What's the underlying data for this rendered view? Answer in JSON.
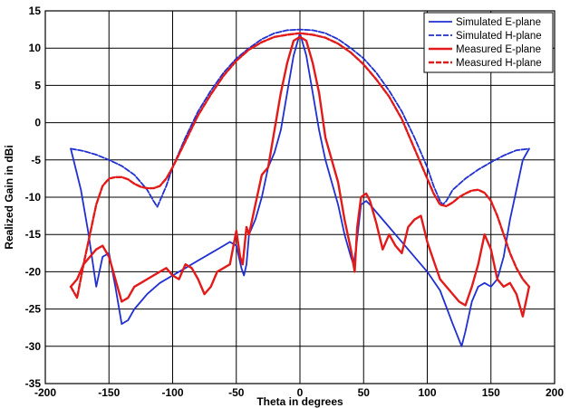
{
  "chart_data": {
    "type": "line",
    "title": "",
    "xlabel": "Theta in degrees",
    "ylabel": "Realized Gain in dBi",
    "xlim": [
      -200,
      200
    ],
    "ylim": [
      -35,
      15
    ],
    "xticks": [
      -200,
      -150,
      -100,
      -50,
      0,
      50,
      100,
      150,
      200
    ],
    "yticks": [
      15,
      10,
      5,
      0,
      -5,
      -10,
      -15,
      -20,
      -25,
      -30,
      -35
    ],
    "grid": true,
    "legend_position": "top-right",
    "series": [
      {
        "name": "Simulated E-plane",
        "color": "#1f2fd0",
        "style": "solid",
        "x": [
          -180,
          -172,
          -166,
          -160,
          -155,
          -150,
          -145,
          -140,
          -135,
          -130,
          -125,
          -120,
          -110,
          -100,
          -90,
          -80,
          -70,
          -60,
          -55,
          -50,
          -46,
          -44,
          -42,
          -40,
          -35,
          -30,
          -25,
          -20,
          -15,
          -10,
          -5,
          0,
          5,
          10,
          15,
          20,
          25,
          30,
          35,
          40,
          42,
          44,
          48,
          52,
          55,
          60,
          70,
          80,
          90,
          100,
          110,
          120,
          127,
          130,
          135,
          140,
          145,
          150,
          155,
          160,
          165,
          170,
          175,
          180
        ],
        "y": [
          -3.5,
          -9,
          -15,
          -22,
          -18,
          -17.5,
          -22,
          -27,
          -26.5,
          -25,
          -24,
          -23,
          -21.5,
          -20.5,
          -19.5,
          -18.5,
          -17.5,
          -16.5,
          -16,
          -16.5,
          -19.5,
          -20.5,
          -19,
          -15,
          -13,
          -10,
          -6,
          -4,
          -1,
          4,
          9,
          12,
          9,
          4,
          -1,
          -5,
          -8,
          -11,
          -15,
          -18,
          -19,
          -17,
          -11,
          -10.5,
          -11,
          -12,
          -14,
          -16,
          -18,
          -20,
          -22.5,
          -27,
          -30,
          -28,
          -24,
          -22,
          -21.5,
          -22,
          -21,
          -18,
          -13,
          -9,
          -5,
          -3.5
        ]
      },
      {
        "name": "Simulated H-plane",
        "color": "#1f2fd0",
        "style": "dashed",
        "x": [
          -180,
          -170,
          -160,
          -150,
          -140,
          -130,
          -125,
          -120,
          -115,
          -112,
          -110,
          -105,
          -100,
          -90,
          -80,
          -70,
          -60,
          -50,
          -40,
          -30,
          -20,
          -10,
          0,
          10,
          20,
          30,
          40,
          50,
          60,
          70,
          80,
          90,
          100,
          105,
          110,
          112,
          115,
          120,
          130,
          140,
          150,
          160,
          170,
          180
        ],
        "y": [
          -3.5,
          -3.8,
          -4.3,
          -5,
          -5.8,
          -7,
          -8,
          -9,
          -10.5,
          -11.3,
          -10.5,
          -8.5,
          -6,
          -2,
          1.5,
          4.3,
          6.7,
          8.6,
          10,
          11.2,
          12,
          12.4,
          12.5,
          12.4,
          12,
          11.2,
          10,
          8.6,
          6.7,
          4.3,
          1.5,
          -2,
          -6,
          -8.5,
          -10.5,
          -11,
          -10.5,
          -9,
          -7.5,
          -6.3,
          -5.3,
          -4.4,
          -3.7,
          -3.5
        ]
      },
      {
        "name": "Measured E-plane",
        "color": "#e21a1a",
        "style": "solid",
        "x": [
          -180,
          -175,
          -170,
          -165,
          -160,
          -155,
          -150,
          -145,
          -140,
          -135,
          -130,
          -125,
          -120,
          -115,
          -110,
          -105,
          -100,
          -95,
          -90,
          -85,
          -80,
          -75,
          -70,
          -65,
          -60,
          -55,
          -50,
          -47,
          -45,
          -42,
          -40,
          -35,
          -30,
          -25,
          -20,
          -15,
          -10,
          -5,
          0,
          5,
          10,
          15,
          20,
          25,
          30,
          35,
          40,
          43,
          45,
          48,
          52,
          55,
          60,
          65,
          70,
          75,
          80,
          85,
          90,
          95,
          100,
          105,
          110,
          115,
          120,
          125,
          130,
          135,
          140,
          145,
          150,
          155,
          160,
          165,
          170,
          175,
          180
        ],
        "y": [
          -22,
          -21,
          -19,
          -18,
          -17,
          -16.5,
          -18,
          -21,
          -24,
          -23.5,
          -22,
          -21.5,
          -21,
          -20.5,
          -20,
          -19.5,
          -20.5,
          -21,
          -19,
          -19.5,
          -21,
          -23,
          -22,
          -20,
          -19.5,
          -19,
          -14.5,
          -18,
          -19,
          -14,
          -15,
          -11,
          -7,
          -6,
          -1,
          4,
          8,
          11,
          11.5,
          11,
          8,
          4,
          -2,
          -5,
          -8,
          -13,
          -17,
          -20,
          -14,
          -10,
          -9.5,
          -10.5,
          -13.5,
          -17,
          -15,
          -16.5,
          -17.5,
          -14,
          -13,
          -12.5,
          -16,
          -18.5,
          -21,
          -22,
          -23,
          -24,
          -24.5,
          -22,
          -19,
          -15,
          -17,
          -21,
          -22,
          -21.5,
          -23,
          -26,
          -22
        ]
      },
      {
        "name": "Measured H-plane",
        "color": "#e21a1a",
        "style": "dashed",
        "x": [
          -180,
          -175,
          -170,
          -165,
          -160,
          -155,
          -150,
          -145,
          -140,
          -135,
          -130,
          -125,
          -120,
          -115,
          -110,
          -105,
          -100,
          -90,
          -80,
          -70,
          -60,
          -50,
          -40,
          -30,
          -20,
          -10,
          0,
          10,
          20,
          30,
          40,
          50,
          60,
          70,
          80,
          90,
          100,
          105,
          110,
          115,
          120,
          125,
          130,
          135,
          140,
          145,
          150,
          155,
          160,
          165,
          170,
          175,
          180
        ],
        "y": [
          -22,
          -23.5,
          -19,
          -15,
          -11,
          -8.5,
          -7.5,
          -7.3,
          -7.3,
          -7.6,
          -8.2,
          -8.6,
          -8.8,
          -8.8,
          -8.5,
          -7.5,
          -6,
          -2.5,
          1,
          3.8,
          6.3,
          8.3,
          9.8,
          10.8,
          11.5,
          11.8,
          12,
          11.8,
          11.4,
          10.6,
          9.4,
          7.8,
          5.8,
          3.5,
          0.5,
          -3.5,
          -7.5,
          -9.5,
          -11,
          -11.2,
          -10.7,
          -10,
          -9.5,
          -9.1,
          -9,
          -9.4,
          -10.5,
          -12.5,
          -15,
          -17.5,
          -19.5,
          -21,
          -22
        ]
      }
    ]
  }
}
